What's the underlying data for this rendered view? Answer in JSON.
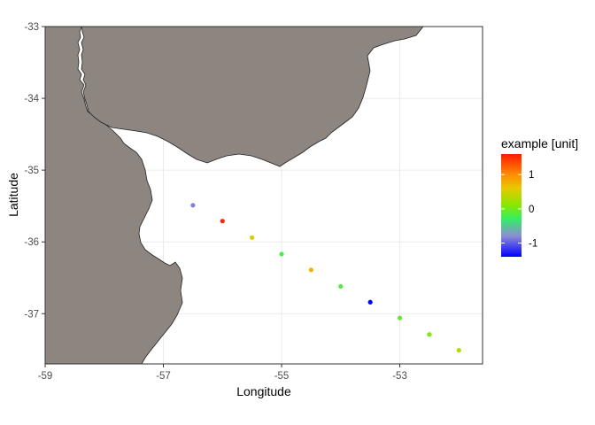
{
  "chart_data": {
    "type": "scatter",
    "title": "",
    "xlabel": "Longitude",
    "ylabel": "Latitude",
    "xlim": [
      -59,
      -51.6
    ],
    "ylim": [
      -37.7,
      -33
    ],
    "x_ticks": [
      -59,
      -57,
      -55,
      -53
    ],
    "y_ticks": [
      -33,
      -34,
      -35,
      -36,
      -37
    ],
    "x_tick_labels": [
      "-59",
      "-57",
      "-55",
      "-53"
    ],
    "y_tick_labels": [
      "-33",
      "-34",
      "-35",
      "-36",
      "-37"
    ],
    "grid": true,
    "points": [
      {
        "x": -56.5,
        "y": -35.49,
        "value": -0.85
      },
      {
        "x": -56.0,
        "y": -35.71,
        "value": 1.55
      },
      {
        "x": -55.5,
        "y": -35.94,
        "value": 0.5
      },
      {
        "x": -55.0,
        "y": -36.17,
        "value": -0.2
      },
      {
        "x": -54.5,
        "y": -36.39,
        "value": 0.75
      },
      {
        "x": -54.0,
        "y": -36.62,
        "value": -0.15
      },
      {
        "x": -53.5,
        "y": -36.84,
        "value": -1.4
      },
      {
        "x": -53.0,
        "y": -37.06,
        "value": -0.1
      },
      {
        "x": -52.5,
        "y": -37.29,
        "value": 0.05
      },
      {
        "x": -52.0,
        "y": -37.51,
        "value": 0.3
      }
    ],
    "legend": {
      "title": "example [unit]",
      "position": "right",
      "breaks": [
        1,
        0,
        -1
      ],
      "labels": [
        "1",
        "0",
        "-1"
      ],
      "range": [
        -1.4,
        1.6
      ],
      "gradient": [
        {
          "value": -1.4,
          "color": "#0000ff"
        },
        {
          "value": -0.8,
          "color": "#8c8cd6"
        },
        {
          "value": -0.3,
          "color": "#33ee66"
        },
        {
          "value": 0.1,
          "color": "#88e800"
        },
        {
          "value": 0.6,
          "color": "#e8c800"
        },
        {
          "value": 1.0,
          "color": "#ff8c00"
        },
        {
          "value": 1.6,
          "color": "#ff1a00"
        }
      ]
    },
    "colors": {
      "land": "#8c8580",
      "coastline": "#222222",
      "grid": "#ebebeb",
      "panel_border": "#333333"
    }
  }
}
